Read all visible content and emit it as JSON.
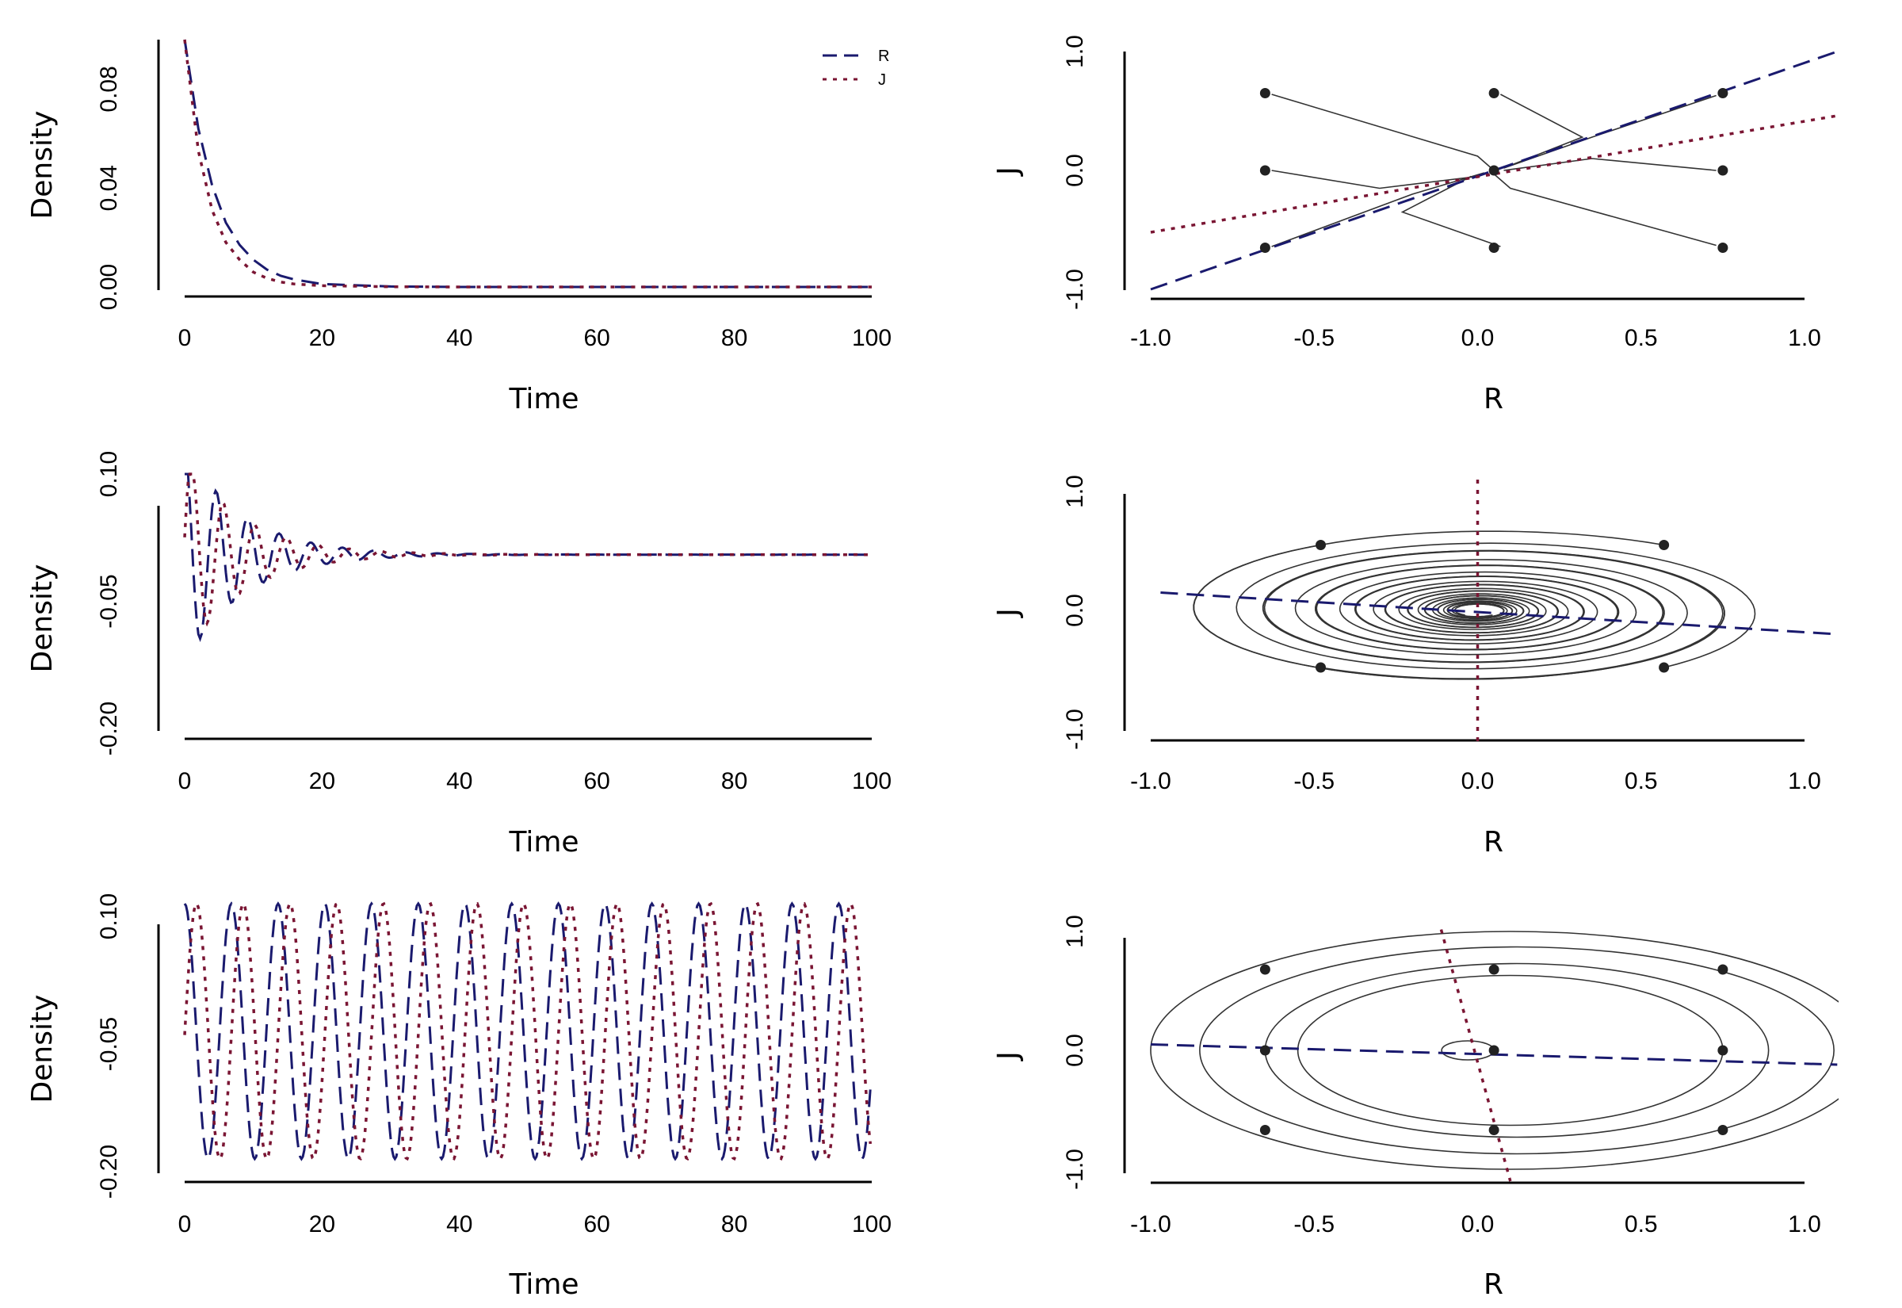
{
  "colors": {
    "R": "#1a1a6e",
    "J": "#7a1533",
    "trajectory": "#333333",
    "point": "#222222"
  },
  "legend": [
    {
      "name": "R",
      "color": "#1a1a6e",
      "dash": "dashed"
    },
    {
      "name": "J",
      "color": "#7a1533",
      "dash": "dotted"
    }
  ],
  "chart_data": [
    {
      "type": "line",
      "xlabel": "Time",
      "ylabel": "Density",
      "xlim": [
        0,
        100
      ],
      "ylim": [
        0,
        0.1
      ],
      "xticks": [
        "0",
        "20",
        "40",
        "60",
        "80",
        "100"
      ],
      "yticks": [
        "0.00",
        "0.04",
        "0.08"
      ],
      "legend": "top-right",
      "series": [
        {
          "name": "R",
          "x": [
            0,
            2,
            4,
            6,
            8,
            10,
            12,
            14,
            16,
            20,
            30,
            40,
            60,
            80,
            100
          ],
          "values": [
            0.1,
            0.064,
            0.041,
            0.026,
            0.017,
            0.011,
            0.007,
            0.0045,
            0.003,
            0.0012,
            0.0002,
            0,
            0,
            0,
            0
          ]
        },
        {
          "name": "J",
          "x": [
            0,
            2,
            4,
            6,
            8,
            10,
            12,
            14,
            16,
            20,
            30,
            40,
            60,
            80,
            100
          ],
          "values": [
            0.1,
            0.055,
            0.031,
            0.018,
            0.011,
            0.006,
            0.0035,
            0.002,
            0.0012,
            0.0005,
            0.0001,
            0,
            0,
            0,
            0
          ]
        }
      ]
    },
    {
      "type": "line",
      "subtype": "phase-portrait",
      "xlabel": "R",
      "ylabel": "J",
      "xlim": [
        -1,
        1
      ],
      "ylim": [
        -1,
        1
      ],
      "xticks": [
        "-1.0",
        "-0.5",
        "0.0",
        "0.5",
        "1.0"
      ],
      "yticks": [
        "-1.0",
        "0.0",
        "1.0"
      ],
      "nullclines": [
        {
          "name": "R",
          "points": [
            [
              -1.0,
              -1.0
            ],
            [
              1.1,
              1.0
            ]
          ]
        },
        {
          "name": "J",
          "points": [
            [
              -1.0,
              -0.52
            ],
            [
              1.1,
              0.46
            ]
          ]
        }
      ],
      "start_points": [
        [
          -0.65,
          0.65
        ],
        [
          0.05,
          0.65
        ],
        [
          0.75,
          0.65
        ],
        [
          -0.65,
          0.0
        ],
        [
          0.05,
          0.0
        ],
        [
          0.75,
          0.0
        ],
        [
          -0.65,
          -0.65
        ],
        [
          0.05,
          -0.65
        ],
        [
          0.75,
          -0.65
        ]
      ],
      "trajectories": [
        [
          [
            -0.63,
            0.64
          ],
          [
            0.0,
            0.12
          ],
          [
            0.05,
            0.0
          ]
        ],
        [
          [
            0.07,
            0.64
          ],
          [
            0.32,
            0.28
          ],
          [
            0.08,
            0.02
          ]
        ],
        [
          [
            0.73,
            0.63
          ],
          [
            0.35,
            0.28
          ],
          [
            0.08,
            0.02
          ]
        ],
        [
          [
            -0.63,
            0.0
          ],
          [
            -0.3,
            -0.15
          ],
          [
            0.0,
            -0.05
          ]
        ],
        [
          [
            0.73,
            0.0
          ],
          [
            0.35,
            0.1
          ],
          [
            0.08,
            0.0
          ]
        ],
        [
          [
            -0.63,
            -0.64
          ],
          [
            -0.2,
            -0.2
          ],
          [
            0.02,
            -0.02
          ]
        ],
        [
          [
            0.07,
            -0.64
          ],
          [
            -0.23,
            -0.35
          ],
          [
            -0.02,
            -0.05
          ]
        ],
        [
          [
            0.73,
            -0.63
          ],
          [
            0.1,
            -0.15
          ],
          [
            0.05,
            -0.03
          ]
        ]
      ]
    },
    {
      "type": "line",
      "xlabel": "Time",
      "ylabel": "Density",
      "xlim": [
        0,
        100
      ],
      "ylim": [
        -0.2,
        0.1
      ],
      "xticks": [
        "0",
        "20",
        "40",
        "60",
        "80",
        "100"
      ],
      "yticks": [
        "-0.20",
        "-0.05",
        "0.10"
      ],
      "series_model": {
        "R": {
          "amplitude": 0.13,
          "decay": 0.12,
          "period": 4.6,
          "offset": 0.005,
          "phase": 0
        },
        "J": {
          "amplitude": 0.12,
          "decay": 0.12,
          "period": 4.6,
          "offset": 0.005,
          "phase": 1.4
        }
      }
    },
    {
      "type": "line",
      "subtype": "phase-portrait",
      "xlabel": "R",
      "ylabel": "J",
      "xlim": [
        -1,
        1
      ],
      "ylim": [
        -1,
        1
      ],
      "xticks": [
        "-1.0",
        "-0.5",
        "0.0",
        "0.5",
        "1.0"
      ],
      "yticks": [
        "-1.0",
        "0.0",
        "1.0"
      ],
      "nullclines": [
        {
          "name": "R",
          "points": [
            [
              -0.97,
              0.15
            ],
            [
              1.1,
              -0.2
            ]
          ]
        },
        {
          "name": "J",
          "points": [
            [
              0.0,
              1.1
            ],
            [
              0.0,
              -1.1
            ]
          ]
        }
      ],
      "start_points": [
        [
          -0.48,
          0.55
        ],
        [
          0.57,
          0.55
        ],
        [
          -0.48,
          -0.48
        ],
        [
          0.57,
          -0.48
        ]
      ],
      "spiral": {
        "center": [
          0.0,
          0.0
        ],
        "rx": 0.7,
        "ry": 0.5,
        "turns": 9,
        "decay": 0.28
      }
    },
    {
      "type": "line",
      "xlabel": "Time",
      "ylabel": "Density",
      "xlim": [
        0,
        100
      ],
      "ylim": [
        -0.2,
        0.1
      ],
      "xticks": [
        "0",
        "20",
        "40",
        "60",
        "80",
        "100"
      ],
      "yticks": [
        "-0.20",
        "-0.05",
        "0.10"
      ],
      "series_model": {
        "R": {
          "amplitude": 0.15,
          "period": 6.8,
          "offset": -0.035,
          "phase": 0
        },
        "J": {
          "amplitude": 0.15,
          "period": 6.8,
          "offset": -0.035,
          "phase": 1.6
        }
      }
    },
    {
      "type": "line",
      "subtype": "phase-portrait",
      "xlabel": "R",
      "ylabel": "J",
      "xlim": [
        -1,
        1
      ],
      "ylim": [
        -1,
        1
      ],
      "xticks": [
        "-1.0",
        "-0.5",
        "0.0",
        "0.5",
        "1.0"
      ],
      "yticks": [
        "-1.0",
        "0.0",
        "1.0"
      ],
      "nullclines": [
        {
          "name": "R",
          "points": [
            [
              -1.0,
              0.05
            ],
            [
              1.1,
              -0.12
            ]
          ]
        },
        {
          "name": "J",
          "points": [
            [
              -0.12,
              1.1
            ],
            [
              0.1,
              -1.1
            ]
          ]
        }
      ],
      "start_points": [
        [
          -0.65,
          0.68
        ],
        [
          0.05,
          0.68
        ],
        [
          0.75,
          0.68
        ],
        [
          -0.65,
          0.0
        ],
        [
          0.05,
          0.0
        ],
        [
          0.75,
          0.0
        ],
        [
          -0.65,
          -0.67
        ],
        [
          0.05,
          -0.67
        ],
        [
          0.75,
          -0.67
        ]
      ],
      "orbits": [
        {
          "cx": -0.03,
          "cy": 0.0,
          "rx": 0.08,
          "ry": 0.08
        },
        {
          "cx": 0.1,
          "cy": 0.0,
          "rx": 0.65,
          "ry": 0.63
        },
        {
          "cx": 0.12,
          "cy": 0.0,
          "rx": 0.77,
          "ry": 0.73
        },
        {
          "cx": 0.12,
          "cy": 0.0,
          "rx": 0.97,
          "ry": 0.87
        },
        {
          "cx": 0.1,
          "cy": 0.0,
          "rx": 1.1,
          "ry": 1.0
        }
      ]
    }
  ]
}
